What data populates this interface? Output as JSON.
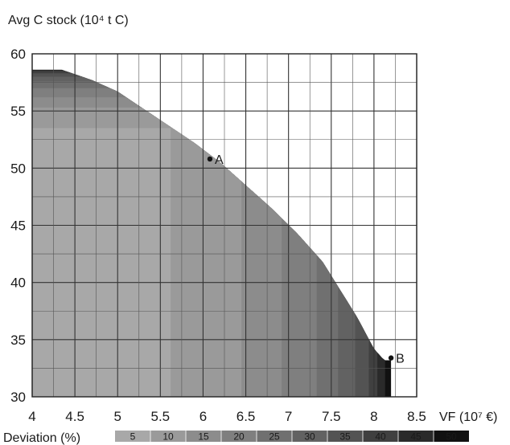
{
  "chart_data": {
    "type": "area",
    "ylabel": "Avg C stock (10⁴ t C)",
    "xlabel": "VF (10⁷ €)",
    "xlim": [
      4,
      8.5
    ],
    "ylim": [
      30,
      60
    ],
    "xticks": [
      "4",
      "4.5",
      "5",
      "5.5",
      "6",
      "6.5",
      "7",
      "7.5",
      "8",
      "8.5"
    ],
    "yticks": [
      "30",
      "35",
      "40",
      "45",
      "50",
      "55",
      "60"
    ],
    "grid": true,
    "frontier": [
      [
        4.05,
        58.6
      ],
      [
        4.35,
        58.6
      ],
      [
        4.7,
        57.7
      ],
      [
        5.0,
        56.7
      ],
      [
        5.3,
        55.2
      ],
      [
        5.6,
        53.7
      ],
      [
        5.9,
        52.2
      ],
      [
        6.2,
        50.5
      ],
      [
        6.5,
        48.5
      ],
      [
        6.8,
        46.5
      ],
      [
        7.1,
        44.3
      ],
      [
        7.4,
        41.8
      ],
      [
        7.6,
        39.4
      ],
      [
        7.8,
        37.0
      ],
      [
        8.0,
        34.2
      ],
      [
        8.12,
        33.2
      ],
      [
        8.2,
        33.2
      ]
    ],
    "series": [
      {
        "name": "5",
        "color": "#a8a8a8",
        "xmax": 5.62,
        "ymax": 53.5
      },
      {
        "name": "10",
        "color": "#9a9a9a",
        "xmax": 6.45,
        "ymax": 55.3
      },
      {
        "name": "15",
        "color": "#8c8c8c",
        "xmax": 6.92,
        "ymax": 56.2
      },
      {
        "name": "20",
        "color": "#7f7f7f",
        "xmax": 7.33,
        "ymax": 57.0
      },
      {
        "name": "25",
        "color": "#707070",
        "xmax": 7.58,
        "ymax": 57.6
      },
      {
        "name": "30",
        "color": "#626262",
        "xmax": 7.78,
        "ymax": 58.0
      },
      {
        "name": "35",
        "color": "#535353",
        "xmax": 7.94,
        "ymax": 58.3
      },
      {
        "name": "40",
        "color": "#404040",
        "xmax": 8.04,
        "ymax": 58.5
      },
      {
        "name": "45",
        "color": "#2a2a2a",
        "xmax": 8.13,
        "ymax": 58.6
      },
      {
        "name": "50",
        "color": "#111111",
        "xmax": 8.2,
        "ymax": 58.6
      }
    ],
    "points": [
      {
        "label": "A",
        "x": 6.08,
        "y": 50.8
      },
      {
        "label": "B",
        "x": 8.2,
        "y": 33.4
      }
    ],
    "legend": {
      "title": "Deviation (%)",
      "placement": "bottom"
    }
  }
}
